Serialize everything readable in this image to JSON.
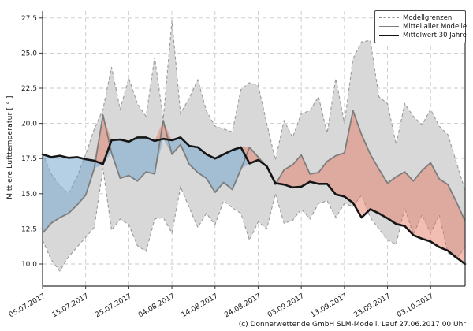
{
  "figure": {
    "background": "#ffffff"
  },
  "legend": {
    "items": [
      {
        "label": "Modellgrenzen",
        "style": "dashed-gray"
      },
      {
        "label": "Mittel aller Modelle",
        "style": "solid-gray"
      },
      {
        "label": "Mittelwert 30 Jahre",
        "style": "solid-black"
      }
    ]
  },
  "footer": {
    "credit": "(c) Donnerwetter.de GmbH SLM-Modell, Lauf 27.06.2017 00 Uhr"
  },
  "chart_data": {
    "type": "area",
    "title": "",
    "xlabel": "",
    "ylabel": "Mittlere Lufttemperatur [ ° ]",
    "ylim": [
      8.4,
      28.0
    ],
    "grid": true,
    "legend_position": "top-right",
    "yticks": [
      10.0,
      12.5,
      15.0,
      17.5,
      20.0,
      22.5,
      25.0,
      27.5
    ],
    "y_tick_labels": [
      "10.0",
      "12.5",
      "15.0",
      "17.5",
      "20.0",
      "22.5",
      "25.0",
      "27.5"
    ],
    "x_tick_days": [
      0,
      10,
      20,
      30,
      40,
      50,
      60,
      70,
      80,
      90
    ],
    "x_tick_labels": [
      "05.07.2017",
      "15.07.2017",
      "25.07.2017",
      "04.08.2017",
      "14.08.2017",
      "24.08.2017",
      "03.09.2017",
      "13.09.2017",
      "23.09.2017",
      "03.10.2017"
    ],
    "x_days": [
      0,
      2,
      4,
      6,
      8,
      10,
      12,
      14,
      16,
      18,
      20,
      22,
      24,
      26,
      28,
      30,
      32,
      34,
      36,
      38,
      40,
      42,
      44,
      46,
      48,
      50,
      52,
      54,
      56,
      58,
      60,
      62,
      64,
      66,
      68,
      70,
      72,
      74,
      76,
      78,
      80,
      82,
      84,
      86,
      88,
      90,
      92,
      94,
      96,
      98
    ],
    "series": [
      {
        "name": "Modellgrenzen (obere Grenze)",
        "role": "max",
        "values": [
          17.9,
          16.4,
          15.6,
          15.0,
          16.2,
          17.8,
          19.6,
          21.0,
          24.0,
          21.0,
          23.2,
          21.4,
          20.5,
          24.7,
          20.3,
          27.3,
          20.7,
          21.8,
          23.1,
          20.9,
          19.8,
          19.6,
          19.4,
          22.4,
          22.9,
          22.7,
          20.0,
          17.4,
          20.2,
          19.0,
          20.7,
          20.9,
          21.9,
          19.3,
          23.2,
          20.0,
          24.6,
          25.8,
          25.9,
          21.9,
          21.4,
          18.5,
          21.4,
          20.5,
          19.9,
          21.0,
          19.8,
          19.2,
          17.2,
          15.2
        ]
      },
      {
        "name": "Modellgrenzen (untere Grenze)",
        "role": "min",
        "values": [
          11.7,
          10.3,
          9.5,
          10.5,
          11.2,
          11.9,
          12.6,
          16.8,
          12.4,
          13.2,
          12.8,
          11.3,
          10.9,
          13.2,
          13.3,
          12.2,
          15.5,
          14.0,
          12.6,
          13.6,
          12.8,
          14.5,
          14.0,
          13.6,
          11.7,
          13.0,
          12.5,
          15.0,
          12.9,
          13.1,
          13.9,
          13.2,
          14.3,
          14.5,
          13.3,
          14.3,
          14.1,
          14.9,
          13.3,
          12.5,
          11.7,
          11.4,
          14.0,
          12.1,
          13.5,
          12.2,
          13.5,
          10.8,
          10.4,
          11.2
        ]
      },
      {
        "name": "Mittel aller Modelle",
        "role": "mean",
        "values": [
          12.2,
          12.9,
          13.3,
          13.6,
          14.2,
          14.9,
          16.8,
          20.6,
          17.9,
          16.1,
          16.3,
          15.9,
          16.55,
          16.4,
          20.2,
          17.8,
          18.5,
          17.1,
          16.5,
          16.1,
          15.1,
          15.8,
          15.3,
          16.75,
          18.3,
          17.6,
          16.9,
          15.65,
          16.7,
          17.05,
          17.75,
          16.4,
          16.5,
          17.3,
          17.7,
          17.9,
          20.9,
          19.2,
          17.8,
          16.75,
          15.75,
          16.2,
          16.55,
          15.9,
          16.65,
          17.2,
          16.05,
          15.65,
          14.4,
          13.05
        ]
      },
      {
        "name": "Mittelwert 30 Jahre",
        "role": "clim",
        "values": [
          17.8,
          17.6,
          17.7,
          17.55,
          17.6,
          17.45,
          17.35,
          17.1,
          18.8,
          18.85,
          18.7,
          19.0,
          19.0,
          18.75,
          18.9,
          18.8,
          19.0,
          18.4,
          18.3,
          17.8,
          17.5,
          17.8,
          18.1,
          18.3,
          17.15,
          17.4,
          16.95,
          15.75,
          15.65,
          15.45,
          15.5,
          15.85,
          15.7,
          15.7,
          14.95,
          14.8,
          14.35,
          13.3,
          13.9,
          13.6,
          13.25,
          12.85,
          12.7,
          12.05,
          11.8,
          11.6,
          11.2,
          10.95,
          10.45,
          10.0
        ]
      }
    ],
    "colors": {
      "band_fill": "#d8d8d8",
      "band_edge": "#9a9a9a",
      "mean_line": "#7d7d7d",
      "clim_line": "#151515",
      "cooler_fill": "rgba(120,170,205,0.55)",
      "warmer_fill": "rgba(228,120,98,0.48)",
      "grid": "#c9c9c9",
      "spine": "#333333",
      "tick_text": "#1a1a1a"
    }
  }
}
